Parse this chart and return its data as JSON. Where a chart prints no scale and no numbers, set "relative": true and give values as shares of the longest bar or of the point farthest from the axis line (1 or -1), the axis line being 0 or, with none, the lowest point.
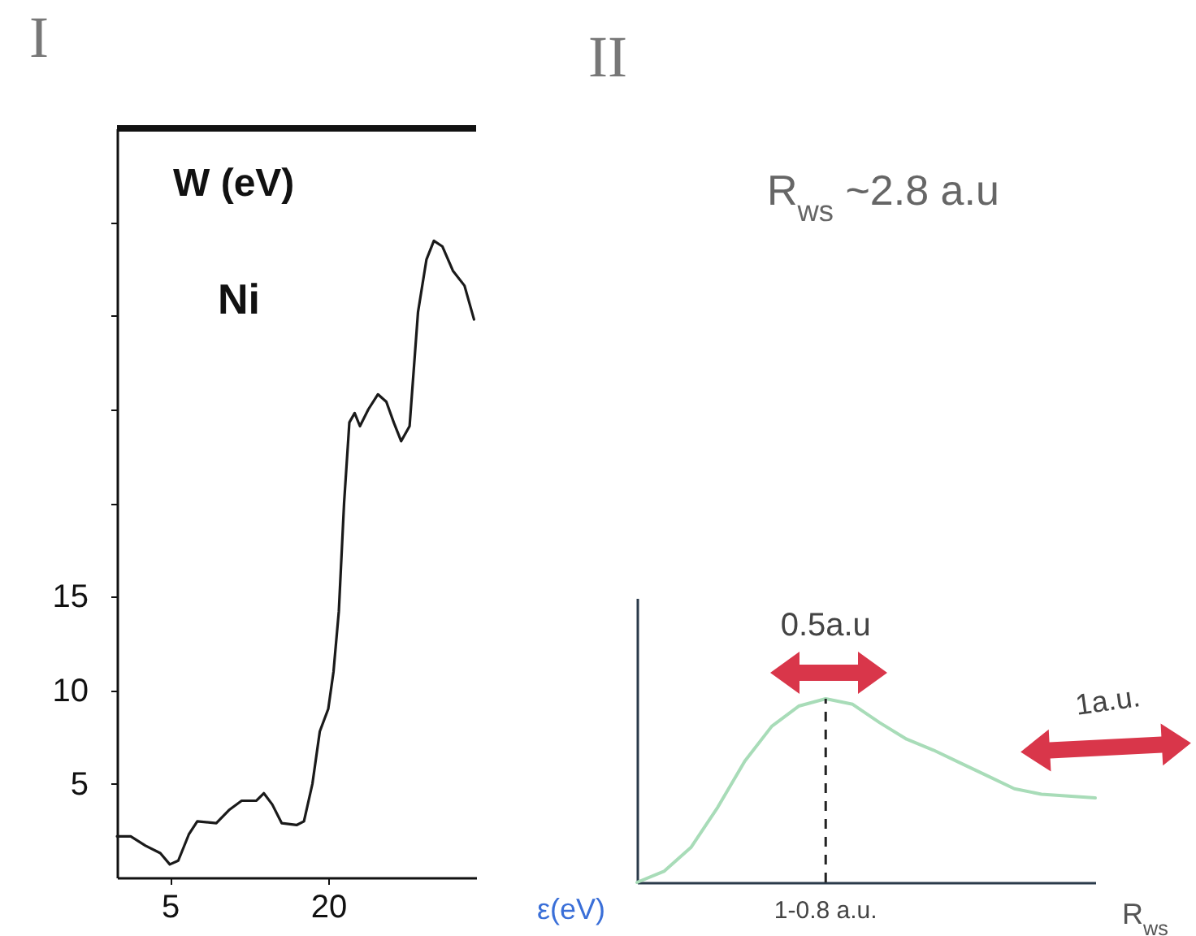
{
  "chart_data": [
    {
      "type": "line",
      "title": "I",
      "xlabel": "ε(eV)",
      "ylabel": "W (eV)",
      "x": [
        0,
        1.3,
        2.7,
        4.1,
        5,
        5.8,
        6.8,
        7.6,
        9.4,
        10.6,
        11.8,
        13.2,
        13.9,
        14.7,
        15.6,
        17,
        17.7,
        18.5,
        19.2,
        20,
        20.5,
        21,
        21.5,
        22,
        22.5,
        23,
        23.8,
        24.7,
        25.5,
        26.2,
        26.9,
        27.7,
        28.5,
        29.3,
        30,
        30.8,
        31.8,
        32.9,
        33.8
      ],
      "series": [
        {
          "color": "#1a1a1a",
          "values": [
            2.2,
            2.2,
            1.7,
            1.3,
            0.7,
            0.9,
            2.3,
            3.0,
            2.9,
            3.6,
            4.1,
            4.1,
            4.5,
            3.9,
            2.9,
            2.8,
            3.0,
            5.0,
            7.8,
            9.0,
            11,
            14.2,
            20,
            24.3,
            24.8,
            24.1,
            25,
            25.8,
            25.4,
            24.3,
            23.3,
            24.1,
            30.2,
            33,
            34,
            33.7,
            32.4,
            31.6,
            29.8
          ]
        }
      ],
      "xlim": [
        0,
        34
      ],
      "ylim": [
        0,
        40
      ],
      "xticks": [
        5,
        20
      ],
      "yticks": [
        5,
        10,
        15,
        {
          "value": 20,
          "label": null
        },
        {
          "value": 25,
          "label": null
        },
        {
          "value": 30,
          "label": null
        },
        {
          "value": 35,
          "label": null
        }
      ],
      "annotations": [
        "Ni"
      ]
    },
    {
      "type": "line",
      "title": "II",
      "xlabel": "R$_{ws}$",
      "relative": true,
      "categories": [
        null,
        null,
        null,
        null,
        null,
        null,
        null,
        null,
        null,
        null,
        null,
        null,
        null,
        null,
        null,
        null,
        null,
        null
      ],
      "series": [
        {
          "color": "#a8dcb8",
          "values": [
            0,
            0.06,
            0.19,
            0.41,
            0.66,
            0.85,
            0.96,
            1,
            0.97,
            0.87,
            0.78,
            0.72,
            0.65,
            0.58,
            0.51,
            0.48,
            0.47,
            0.46
          ]
        }
      ],
      "annotations": [
        "R$_{ws}$ ~2.8 a.u",
        "0.5a.u",
        "1a.u.",
        "1-0.8 a.u."
      ]
    }
  ]
}
